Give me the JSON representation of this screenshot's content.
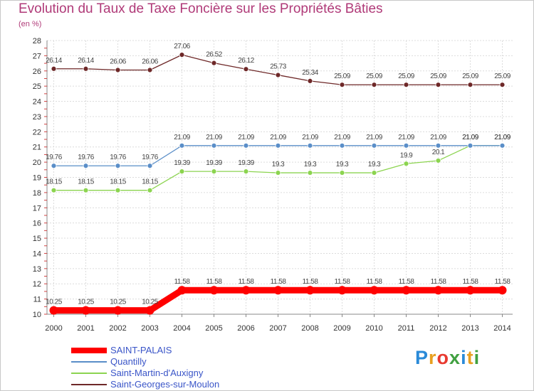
{
  "title": "Evolution du Taux de Taxe Foncière sur les Propriétés Bâties",
  "unit": "(en %)",
  "logo": "Proxiti",
  "colors": {
    "logo": [
      "#2a8ad8",
      "#e8a020",
      "#e83a30",
      "#40a040",
      "#2a8ad8",
      "#e8a020",
      "#40a040"
    ]
  },
  "chart_data": {
    "type": "line",
    "title": "Evolution du Taux de Taxe Foncière sur les Propriétés Bâties",
    "ylabel": "(en %)",
    "xlabel": "",
    "ylim": [
      10,
      28
    ],
    "yticks": [
      10,
      11,
      12,
      13,
      14,
      15,
      16,
      17,
      18,
      19,
      20,
      21,
      22,
      23,
      24,
      25,
      26,
      27,
      28
    ],
    "x": [
      "2000",
      "2001",
      "2002",
      "2003",
      "2004",
      "2005",
      "2006",
      "2007",
      "2008",
      "2009",
      "2010",
      "2011",
      "2012",
      "2013",
      "2014"
    ],
    "grid": true,
    "legend_position": "bottom-left",
    "series": [
      {
        "name": "SAINT-PALAIS",
        "color": "#ff0000",
        "values": [
          10.25,
          10.25,
          10.25,
          10.25,
          11.58,
          11.58,
          11.58,
          11.58,
          11.58,
          11.58,
          11.58,
          11.58,
          11.58,
          11.58,
          11.58
        ],
        "labels": [
          "10.25",
          "10.25",
          "10.25",
          "10.25",
          "11.58",
          "11.58",
          "11.58",
          "11.58",
          "11.58",
          "11.58",
          "11.58",
          "11.58",
          "11.58",
          "11.58",
          "11.58"
        ]
      },
      {
        "name": "Quantilly",
        "color": "#5a8ec8",
        "values": [
          19.76,
          19.76,
          19.76,
          19.76,
          21.09,
          21.09,
          21.09,
          21.09,
          21.09,
          21.09,
          21.09,
          21.09,
          21.09,
          21.09,
          21.09
        ],
        "labels": [
          "19.76",
          "19.76",
          "19.76",
          "19.76",
          "21.09",
          "21.09",
          "21.09",
          "21.09",
          "21.09",
          "21.09",
          "21.09",
          "21.09",
          "21.09",
          "21.09",
          "21.09"
        ]
      },
      {
        "name": "Saint-Martin-d'Auxigny",
        "color": "#8cd450",
        "values": [
          18.15,
          18.15,
          18.15,
          18.15,
          19.39,
          19.39,
          19.39,
          19.3,
          19.3,
          19.3,
          19.3,
          19.9,
          20.1,
          21.09,
          21.09
        ],
        "labels": [
          "18.15",
          "18.15",
          "18.15",
          "18.15",
          "19.39",
          "19.39",
          "19.39",
          "19.3",
          "19.3",
          "19.3",
          "19.3",
          "19.9",
          "20.1",
          "21.09",
          "21.09"
        ]
      },
      {
        "name": "Saint-Georges-sur-Moulon",
        "color": "#6e2828",
        "values": [
          26.14,
          26.14,
          26.06,
          26.06,
          27.06,
          26.52,
          26.12,
          25.73,
          25.34,
          25.09,
          25.09,
          25.09,
          25.09,
          25.09,
          25.09
        ],
        "labels": [
          "26.14",
          "26.14",
          "26.06",
          "26.06",
          "27.06",
          "26.52",
          "26.12",
          "25.73",
          "25.34",
          "25.09",
          "25.09",
          "25.09",
          "25.09",
          "25.09",
          "25.09"
        ]
      }
    ]
  }
}
